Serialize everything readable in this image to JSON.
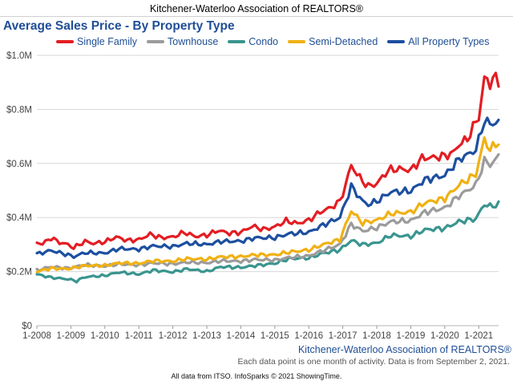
{
  "header": {
    "title": "Kitchener-Waterloo Association of REALTORS®"
  },
  "footer": {
    "source": "Kitchener-Waterloo Association of REALTORS®",
    "note": "Each data point is one month of activity. Data is from September 2, 2021.",
    "credit": "All data from ITSO. InfoSparks © 2021 ShowingTime."
  },
  "colors": {
    "single_family": "#e31d23",
    "townhouse": "#9b9b9b",
    "condo": "#3a958f",
    "semi_detached": "#f0b114",
    "all_property_types": "#1d4fa0"
  },
  "chart_data": {
    "type": "line",
    "title": "Average Sales Price - By Property Type",
    "xlabel": "",
    "ylabel": "",
    "x_unit": "month",
    "x_start": "2008-01",
    "x_end": "2021-08",
    "ylim": [
      0,
      1000000
    ],
    "yticks": [
      0,
      200000,
      400000,
      600000,
      800000,
      1000000
    ],
    "ytick_labels": [
      "$0",
      "$0.2M",
      "$0.4M",
      "$0.6M",
      "$0.8M",
      "$1.0M"
    ],
    "xtick_labels": [
      "1-2008",
      "1-2009",
      "1-2010",
      "1-2011",
      "1-2012",
      "1-2013",
      "1-2014",
      "1-2015",
      "1-2016",
      "1-2017",
      "1-2018",
      "1-2019",
      "1-2020",
      "1-2021"
    ],
    "grid": {
      "horizontal": true,
      "vertical": false
    },
    "legend_position": "top",
    "series": [
      {
        "name": "Single Family",
        "color_key": "single_family",
        "anchors": [
          [
            "2008-01",
            308000
          ],
          [
            "2008-03",
            302000
          ],
          [
            "2008-06",
            325000
          ],
          [
            "2008-09",
            308000
          ],
          [
            "2008-12",
            300000
          ],
          [
            "2009-02",
            288000
          ],
          [
            "2009-06",
            312000
          ],
          [
            "2009-09",
            304000
          ],
          [
            "2010-01",
            310000
          ],
          [
            "2010-05",
            328000
          ],
          [
            "2010-09",
            315000
          ],
          [
            "2011-01",
            318000
          ],
          [
            "2011-05",
            338000
          ],
          [
            "2011-09",
            325000
          ],
          [
            "2012-01",
            328000
          ],
          [
            "2012-05",
            345000
          ],
          [
            "2012-09",
            330000
          ],
          [
            "2013-01",
            335000
          ],
          [
            "2013-05",
            352000
          ],
          [
            "2013-09",
            342000
          ],
          [
            "2014-01",
            345000
          ],
          [
            "2014-05",
            368000
          ],
          [
            "2014-09",
            356000
          ],
          [
            "2015-01",
            365000
          ],
          [
            "2015-05",
            388000
          ],
          [
            "2015-09",
            378000
          ],
          [
            "2016-01",
            390000
          ],
          [
            "2016-05",
            420000
          ],
          [
            "2016-09",
            438000
          ],
          [
            "2016-12",
            460000
          ],
          [
            "2017-02",
            520000
          ],
          [
            "2017-04",
            595000
          ],
          [
            "2017-06",
            560000
          ],
          [
            "2017-08",
            535000
          ],
          [
            "2017-10",
            515000
          ],
          [
            "2018-01",
            525000
          ],
          [
            "2018-05",
            575000
          ],
          [
            "2018-09",
            580000
          ],
          [
            "2019-01",
            575000
          ],
          [
            "2019-05",
            620000
          ],
          [
            "2019-09",
            622000
          ],
          [
            "2020-01",
            628000
          ],
          [
            "2020-04",
            640000
          ],
          [
            "2020-06",
            670000
          ],
          [
            "2020-09",
            690000
          ],
          [
            "2020-11",
            735000
          ],
          [
            "2021-01",
            770000
          ],
          [
            "2021-03",
            915000
          ],
          [
            "2021-05",
            895000
          ],
          [
            "2021-06",
            920000
          ],
          [
            "2021-08",
            900000
          ]
        ]
      },
      {
        "name": "Townhouse",
        "color_key": "townhouse",
        "anchors": [
          [
            "2008-01",
            205000
          ],
          [
            "2008-06",
            218000
          ],
          [
            "2008-12",
            212000
          ],
          [
            "2009-06",
            225000
          ],
          [
            "2010-01",
            220000
          ],
          [
            "2010-06",
            228000
          ],
          [
            "2011-01",
            224000
          ],
          [
            "2011-06",
            232000
          ],
          [
            "2012-01",
            228000
          ],
          [
            "2012-06",
            235000
          ],
          [
            "2013-01",
            232000
          ],
          [
            "2013-06",
            240000
          ],
          [
            "2014-01",
            238000
          ],
          [
            "2014-06",
            245000
          ],
          [
            "2015-01",
            242000
          ],
          [
            "2015-06",
            252000
          ],
          [
            "2016-01",
            258000
          ],
          [
            "2016-06",
            278000
          ],
          [
            "2016-12",
            300000
          ],
          [
            "2017-04",
            375000
          ],
          [
            "2017-08",
            350000
          ],
          [
            "2018-01",
            362000
          ],
          [
            "2018-06",
            385000
          ],
          [
            "2019-01",
            388000
          ],
          [
            "2019-06",
            420000
          ],
          [
            "2020-01",
            435000
          ],
          [
            "2020-06",
            480000
          ],
          [
            "2020-12",
            520000
          ],
          [
            "2021-03",
            610000
          ],
          [
            "2021-05",
            595000
          ],
          [
            "2021-08",
            625000
          ]
        ]
      },
      {
        "name": "Condo",
        "color_key": "condo",
        "anchors": [
          [
            "2008-01",
            190000
          ],
          [
            "2008-06",
            178000
          ],
          [
            "2008-12",
            172000
          ],
          [
            "2009-03",
            165000
          ],
          [
            "2009-06",
            180000
          ],
          [
            "2010-01",
            185000
          ],
          [
            "2010-06",
            198000
          ],
          [
            "2011-01",
            190000
          ],
          [
            "2011-06",
            205000
          ],
          [
            "2012-01",
            198000
          ],
          [
            "2012-06",
            210000
          ],
          [
            "2013-01",
            200000
          ],
          [
            "2013-06",
            218000
          ],
          [
            "2014-01",
            215000
          ],
          [
            "2014-06",
            222000
          ],
          [
            "2015-01",
            230000
          ],
          [
            "2015-06",
            248000
          ],
          [
            "2016-01",
            250000
          ],
          [
            "2016-06",
            268000
          ],
          [
            "2016-12",
            280000
          ],
          [
            "2017-04",
            315000
          ],
          [
            "2017-08",
            300000
          ],
          [
            "2018-01",
            305000
          ],
          [
            "2018-06",
            335000
          ],
          [
            "2019-01",
            330000
          ],
          [
            "2019-06",
            355000
          ],
          [
            "2020-01",
            360000
          ],
          [
            "2020-06",
            385000
          ],
          [
            "2020-12",
            395000
          ],
          [
            "2021-03",
            450000
          ],
          [
            "2021-05",
            440000
          ],
          [
            "2021-08",
            450000
          ]
        ]
      },
      {
        "name": "Semi-Detached",
        "color_key": "semi_detached",
        "anchors": [
          [
            "2008-01",
            200000
          ],
          [
            "2008-06",
            212000
          ],
          [
            "2008-12",
            210000
          ],
          [
            "2009-06",
            222000
          ],
          [
            "2010-01",
            222000
          ],
          [
            "2010-06",
            232000
          ],
          [
            "2011-01",
            230000
          ],
          [
            "2011-06",
            240000
          ],
          [
            "2012-01",
            238000
          ],
          [
            "2012-06",
            248000
          ],
          [
            "2013-01",
            245000
          ],
          [
            "2013-06",
            255000
          ],
          [
            "2014-01",
            255000
          ],
          [
            "2014-06",
            262000
          ],
          [
            "2015-01",
            262000
          ],
          [
            "2015-06",
            272000
          ],
          [
            "2016-01",
            280000
          ],
          [
            "2016-06",
            300000
          ],
          [
            "2016-12",
            318000
          ],
          [
            "2017-04",
            425000
          ],
          [
            "2017-08",
            380000
          ],
          [
            "2018-01",
            390000
          ],
          [
            "2018-06",
            415000
          ],
          [
            "2019-01",
            420000
          ],
          [
            "2019-06",
            455000
          ],
          [
            "2020-01",
            470000
          ],
          [
            "2020-06",
            520000
          ],
          [
            "2020-12",
            560000
          ],
          [
            "2021-03",
            690000
          ],
          [
            "2021-05",
            650000
          ],
          [
            "2021-08",
            680000
          ]
        ]
      },
      {
        "name": "All Property Types",
        "color_key": "all_property_types",
        "anchors": [
          [
            "2008-01",
            265000
          ],
          [
            "2008-06",
            278000
          ],
          [
            "2008-12",
            262000
          ],
          [
            "2009-02",
            255000
          ],
          [
            "2009-06",
            270000
          ],
          [
            "2010-01",
            268000
          ],
          [
            "2010-06",
            285000
          ],
          [
            "2011-01",
            282000
          ],
          [
            "2011-06",
            295000
          ],
          [
            "2012-01",
            292000
          ],
          [
            "2012-06",
            305000
          ],
          [
            "2013-01",
            300000
          ],
          [
            "2013-06",
            312000
          ],
          [
            "2014-01",
            312000
          ],
          [
            "2014-06",
            325000
          ],
          [
            "2015-01",
            325000
          ],
          [
            "2015-06",
            340000
          ],
          [
            "2016-01",
            345000
          ],
          [
            "2016-06",
            372000
          ],
          [
            "2016-12",
            400000
          ],
          [
            "2017-04",
            515000
          ],
          [
            "2017-08",
            460000
          ],
          [
            "2017-10",
            448000
          ],
          [
            "2018-01",
            460000
          ],
          [
            "2018-06",
            495000
          ],
          [
            "2019-01",
            498000
          ],
          [
            "2019-06",
            540000
          ],
          [
            "2020-01",
            555000
          ],
          [
            "2020-06",
            615000
          ],
          [
            "2020-12",
            650000
          ],
          [
            "2021-03",
            760000
          ],
          [
            "2021-05",
            745000
          ],
          [
            "2021-08",
            755000
          ]
        ]
      }
    ]
  }
}
